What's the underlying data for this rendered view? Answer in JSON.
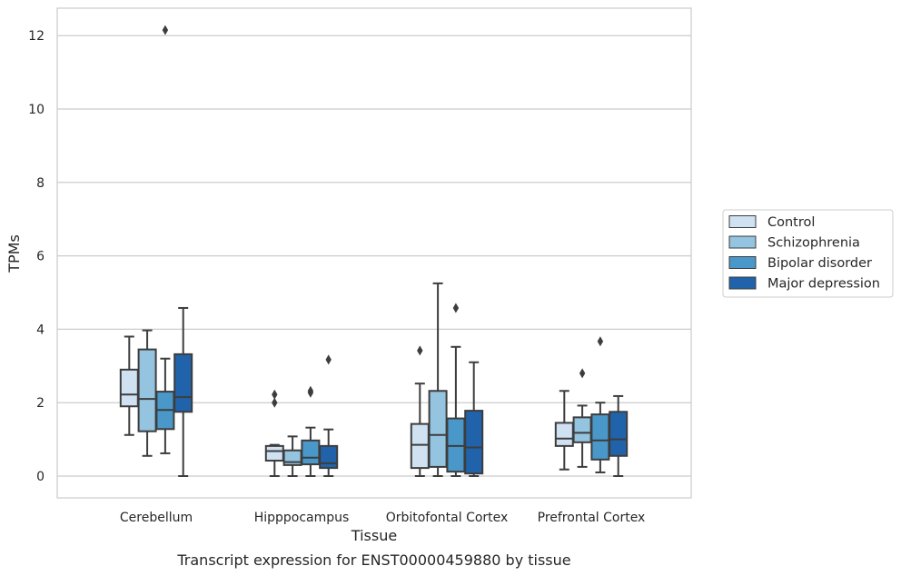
{
  "chart_data": {
    "type": "box",
    "title": "",
    "caption": "Transcript expression for ENST00000459880 by tissue",
    "xlabel": "Tissue",
    "ylabel": "TPMs",
    "ylim": [
      -0.6,
      12.75
    ],
    "yticks": [
      0,
      2,
      4,
      6,
      8,
      10,
      12
    ],
    "grid": "horizontal",
    "legend_position": "right",
    "categories": [
      "Cerebellum",
      "Hipppocampus",
      "Orbitofontal Cortex",
      "Prefrontal Cortex"
    ],
    "series": [
      {
        "name": "Control",
        "color": "#d0e1f2",
        "boxes": [
          {
            "whislo": 1.12,
            "q1": 1.9,
            "med": 2.22,
            "q3": 2.9,
            "whishi": 3.8,
            "fliers": []
          },
          {
            "whislo": 0.0,
            "q1": 0.42,
            "med": 0.68,
            "q3": 0.82,
            "whishi": 0.85,
            "fliers": [
              2.0,
              2.22
            ]
          },
          {
            "whislo": 0.0,
            "q1": 0.22,
            "med": 0.85,
            "q3": 1.42,
            "whishi": 2.52,
            "fliers": [
              3.42
            ]
          },
          {
            "whislo": 0.18,
            "q1": 0.82,
            "med": 1.02,
            "q3": 1.45,
            "whishi": 2.32,
            "fliers": []
          }
        ]
      },
      {
        "name": "Schizophrenia",
        "color": "#94c4df",
        "boxes": [
          {
            "whislo": 0.55,
            "q1": 1.22,
            "med": 2.1,
            "q3": 3.45,
            "whishi": 3.97,
            "fliers": []
          },
          {
            "whislo": 0.0,
            "q1": 0.3,
            "med": 0.38,
            "q3": 0.7,
            "whishi": 1.08,
            "fliers": []
          },
          {
            "whislo": 0.0,
            "q1": 0.25,
            "med": 1.12,
            "q3": 2.32,
            "whishi": 5.25,
            "fliers": []
          },
          {
            "whislo": 0.25,
            "q1": 0.92,
            "med": 1.18,
            "q3": 1.6,
            "whishi": 1.92,
            "fliers": [
              2.8
            ]
          }
        ]
      },
      {
        "name": "Bipolar disorder",
        "color": "#4a98c9",
        "boxes": [
          {
            "whislo": 0.62,
            "q1": 1.28,
            "med": 1.8,
            "q3": 2.3,
            "whishi": 3.2,
            "fliers": [
              12.15
            ]
          },
          {
            "whislo": 0.0,
            "q1": 0.32,
            "med": 0.5,
            "q3": 0.97,
            "whishi": 1.32,
            "fliers": [
              2.27,
              2.32
            ]
          },
          {
            "whislo": 0.0,
            "q1": 0.12,
            "med": 0.82,
            "q3": 1.57,
            "whishi": 3.52,
            "fliers": [
              4.58
            ]
          },
          {
            "whislo": 0.1,
            "q1": 0.45,
            "med": 0.97,
            "q3": 1.68,
            "whishi": 2.0,
            "fliers": [
              3.67
            ]
          }
        ]
      },
      {
        "name": "Major depression",
        "color": "#2163aa",
        "boxes": [
          {
            "whislo": 0.0,
            "q1": 1.75,
            "med": 2.15,
            "q3": 3.32,
            "whishi": 4.58,
            "fliers": []
          },
          {
            "whislo": 0.0,
            "q1": 0.22,
            "med": 0.35,
            "q3": 0.82,
            "whishi": 1.27,
            "fliers": [
              3.17
            ]
          },
          {
            "whislo": 0.0,
            "q1": 0.07,
            "med": 0.78,
            "q3": 1.78,
            "whishi": 3.1,
            "fliers": []
          },
          {
            "whislo": 0.0,
            "q1": 0.55,
            "med": 1.0,
            "q3": 1.75,
            "whishi": 2.18,
            "fliers": []
          }
        ]
      }
    ]
  }
}
